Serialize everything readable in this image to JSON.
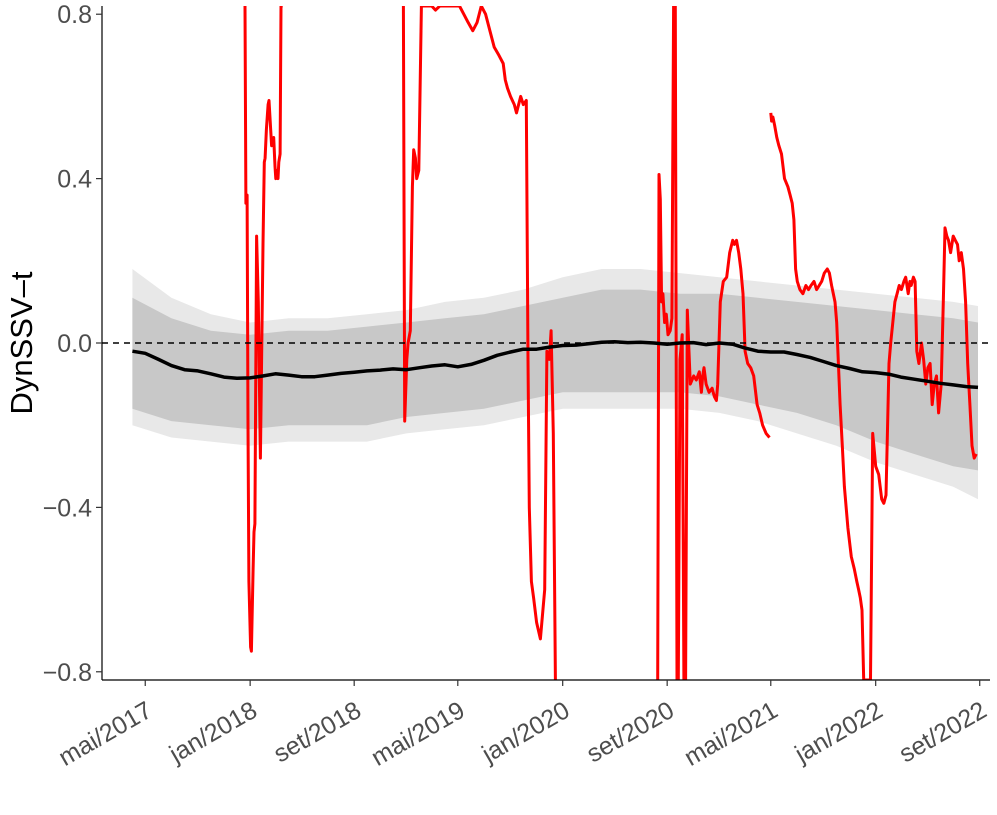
{
  "chart_data": {
    "type": "line",
    "title": "",
    "xlabel": "",
    "ylabel": "DynSSV–t",
    "grid": false,
    "legend": "none",
    "xlim": [
      "2017-01-20",
      "2022-09-25"
    ],
    "ylim": [
      -0.82,
      0.82
    ],
    "x_ticks": [
      "2017-05-01",
      "2018-01-01",
      "2018-09-01",
      "2019-05-01",
      "2020-01-01",
      "2020-09-01",
      "2021-05-01",
      "2022-01-01",
      "2022-09-01"
    ],
    "x_tick_labels": [
      "mai/2017",
      "jan/2018",
      "set/2018",
      "mai/2019",
      "jan/2020",
      "set/2020",
      "mai/2021",
      "jan/2022",
      "set/2022"
    ],
    "y_ticks": [
      -0.8,
      -0.4,
      0.0,
      0.4,
      0.8
    ],
    "y_tick_labels": [
      "−0.8",
      "−0.4",
      "0.0",
      "0.4",
      "0.8"
    ],
    "reference_line": {
      "y": 0.0,
      "style": "dashed",
      "color": "#000000"
    },
    "colors": {
      "observed": "#ff0000",
      "mean": "#000000",
      "band_inner": "#c8c8c8",
      "band_outer": "#e8e8e8"
    },
    "series": [
      {
        "role": "observed",
        "x": [
          "2017-12-20",
          "2017-12-22",
          "2017-12-25",
          "2017-12-27",
          "2017-12-29",
          "2018-01-02",
          "2018-01-04",
          "2018-01-08",
          "2018-01-10",
          "2018-01-12",
          "2018-01-16",
          "2018-01-20",
          "2018-01-25",
          "2018-01-31",
          "2018-02-03",
          "2018-02-05",
          "2018-02-08",
          "2018-02-12",
          "2018-02-14",
          "2018-02-20",
          "2018-02-25",
          "2018-02-28",
          "2018-03-02",
          "2018-03-05",
          "2018-03-07",
          "2018-03-09",
          "2018-03-12",
          "2018-03-14",
          "2018-03-18",
          "2018-03-22",
          "2018-03-25",
          "2018-03-27",
          "2018-03-29",
          "2018-04-02",
          "2018-04-05",
          "2018-04-08",
          "2018-04-12",
          "2018-04-16",
          "2018-04-19"
        ],
        "y": [
          0.82,
          0.34,
          0.36,
          -0.2,
          -0.58,
          -0.74,
          -0.75,
          -0.55,
          -0.46,
          -0.44,
          0.26,
          0.1,
          -0.28,
          0.24,
          0.44,
          0.45,
          0.52,
          0.58,
          0.59,
          0.48,
          0.5,
          0.43,
          0.4,
          0.42,
          0.4,
          0.44,
          0.46,
          0.82,
          0.82,
          null,
          null,
          null,
          null,
          null,
          null,
          null,
          null,
          null,
          null
        ]
      },
      {
        "role": "observed",
        "x": [
          "2018-12-25",
          "2018-12-28",
          "2019-01-02",
          "2019-01-05",
          "2019-01-10",
          "2019-01-15",
          "2019-01-18",
          "2019-01-22",
          "2019-01-25",
          "2019-01-30",
          "2019-02-05",
          "2019-02-12",
          "2019-02-18",
          "2019-03-01",
          "2019-03-10",
          "2019-03-20",
          "2019-04-01",
          "2019-04-12",
          "2019-04-25",
          "2019-05-05",
          "2019-05-15",
          "2019-05-25",
          "2019-06-05",
          "2019-06-15",
          "2019-06-25",
          "2019-07-05",
          "2019-07-15",
          "2019-07-25",
          "2019-08-05",
          "2019-08-15",
          "2019-08-20",
          "2019-08-25",
          "2019-09-01",
          "2019-09-10",
          "2019-09-15",
          "2019-09-20",
          "2019-09-25",
          "2019-10-01",
          "2019-10-08",
          "2019-10-12",
          "2019-10-15",
          "2019-10-20",
          "2019-10-25",
          "2019-11-01",
          "2019-11-10",
          "2019-11-20",
          "2019-11-25",
          "2019-12-01",
          "2019-12-05",
          "2019-12-10",
          "2019-12-15"
        ],
        "y": [
          0.82,
          -0.19,
          -0.04,
          0.0,
          0.03,
          0.38,
          0.47,
          0.45,
          0.4,
          0.42,
          0.82,
          0.82,
          0.82,
          0.82,
          0.81,
          0.82,
          0.82,
          0.82,
          0.82,
          0.82,
          0.8,
          0.78,
          0.76,
          0.78,
          0.82,
          0.8,
          0.76,
          0.72,
          0.7,
          0.68,
          0.64,
          0.62,
          0.6,
          0.58,
          0.56,
          0.58,
          0.6,
          0.58,
          0.59,
          -0.04,
          -0.4,
          -0.58,
          -0.62,
          -0.68,
          -0.72,
          -0.6,
          -0.02,
          -0.04,
          0.03,
          -0.22,
          -0.82
        ]
      },
      {
        "role": "observed",
        "x": [
          "2020-08-10",
          "2020-08-13",
          "2020-08-16",
          "2020-08-19",
          "2020-08-22",
          "2020-08-26",
          "2020-08-30",
          "2020-09-03",
          "2020-09-08",
          "2020-09-12",
          "2020-09-16",
          "2020-09-20",
          "2020-09-24",
          "2020-09-27",
          "2020-10-01",
          "2020-10-06",
          "2020-10-10",
          "2020-10-14",
          "2020-10-18",
          "2020-10-25",
          "2020-11-02",
          "2020-11-08",
          "2020-11-15",
          "2020-11-20",
          "2020-11-23",
          "2020-11-26",
          "2020-12-01",
          "2020-12-08",
          "2020-12-15",
          "2020-12-20",
          "2020-12-25",
          "2020-12-28",
          "2021-01-03",
          "2021-01-10",
          "2021-01-18",
          "2021-01-25",
          "2021-02-01",
          "2021-02-05",
          "2021-02-10",
          "2021-02-15",
          "2021-02-20",
          "2021-02-25",
          "2021-03-02",
          "2021-03-08",
          "2021-03-15",
          "2021-03-22",
          "2021-03-30",
          "2021-04-05",
          "2021-04-12",
          "2021-04-20",
          "2021-04-28"
        ],
        "y": [
          -0.82,
          0.41,
          0.35,
          0.1,
          0.12,
          0.05,
          0.07,
          0.02,
          0.03,
          0.06,
          0.82,
          0.82,
          -0.82,
          -0.82,
          -0.04,
          0.02,
          -0.82,
          -0.82,
          0.08,
          -0.1,
          -0.08,
          -0.09,
          -0.07,
          -0.12,
          -0.08,
          -0.06,
          -0.1,
          -0.12,
          -0.11,
          -0.13,
          -0.14,
          -0.1,
          0.1,
          0.15,
          0.16,
          0.22,
          0.25,
          0.24,
          0.25,
          0.22,
          0.18,
          0.12,
          -0.02,
          -0.05,
          -0.06,
          -0.08,
          -0.15,
          -0.17,
          -0.2,
          -0.22,
          -0.23
        ]
      },
      {
        "role": "observed",
        "x": [
          "2021-05-01",
          "2021-05-03",
          "2021-05-06",
          "2021-05-10",
          "2021-05-15",
          "2021-05-20",
          "2021-05-26",
          "2021-06-02",
          "2021-06-10",
          "2021-06-15",
          "2021-06-20",
          "2021-06-24",
          "2021-06-28",
          "2021-07-02",
          "2021-07-08",
          "2021-07-15",
          "2021-07-22",
          "2021-07-28",
          "2021-08-03",
          "2021-08-10",
          "2021-08-16",
          "2021-08-22",
          "2021-08-28",
          "2021-09-03",
          "2021-09-10",
          "2021-09-15",
          "2021-09-20",
          "2021-09-24",
          "2021-09-28",
          "2021-10-02",
          "2021-10-06",
          "2021-10-10",
          "2021-10-15",
          "2021-10-20",
          "2021-10-28",
          "2021-11-05",
          "2021-11-12",
          "2021-11-18",
          "2021-11-22",
          "2021-11-26",
          "2021-11-30",
          "2021-12-04",
          "2021-12-08",
          "2021-12-10",
          "2021-12-14",
          "2021-12-18"
        ],
        "y": [
          0.56,
          0.54,
          0.55,
          0.53,
          0.5,
          0.48,
          0.46,
          0.4,
          0.38,
          0.36,
          0.34,
          0.3,
          0.18,
          0.15,
          0.13,
          0.12,
          0.14,
          0.13,
          0.14,
          0.15,
          0.13,
          0.14,
          0.15,
          0.17,
          0.18,
          0.17,
          0.14,
          0.12,
          0.1,
          0.05,
          -0.05,
          -0.15,
          -0.25,
          -0.35,
          -0.45,
          -0.52,
          -0.55,
          -0.58,
          -0.6,
          -0.62,
          -0.65,
          -0.82,
          -0.82,
          -0.82,
          -0.82,
          -0.82
        ]
      },
      {
        "role": "observed",
        "x": [
          "2021-12-20",
          "2021-12-25",
          "2022-01-01",
          "2022-01-08",
          "2022-01-15",
          "2022-01-20",
          "2022-01-25",
          "2022-02-01",
          "2022-02-05",
          "2022-02-10",
          "2022-02-15",
          "2022-02-20",
          "2022-02-25",
          "2022-03-02",
          "2022-03-08",
          "2022-03-12",
          "2022-03-18",
          "2022-03-22",
          "2022-03-25",
          "2022-03-30",
          "2022-04-03",
          "2022-04-07",
          "2022-04-12",
          "2022-04-18",
          "2022-04-23",
          "2022-04-28",
          "2022-05-03",
          "2022-05-08",
          "2022-05-13",
          "2022-05-18",
          "2022-05-23",
          "2022-05-28",
          "2022-06-03",
          "2022-06-08",
          "2022-06-12",
          "2022-06-16",
          "2022-06-20",
          "2022-06-25",
          "2022-07-01",
          "2022-07-06",
          "2022-07-11",
          "2022-07-15",
          "2022-07-20",
          "2022-07-25",
          "2022-07-30",
          "2022-08-04",
          "2022-08-09",
          "2022-08-14",
          "2022-08-19",
          "2022-08-24"
        ],
        "y": [
          -0.82,
          -0.22,
          -0.3,
          -0.32,
          -0.38,
          -0.39,
          -0.37,
          -0.05,
          0.0,
          0.05,
          0.1,
          0.12,
          0.14,
          0.13,
          0.15,
          0.16,
          0.12,
          0.15,
          0.14,
          0.16,
          0.15,
          -0.02,
          -0.05,
          0.0,
          -0.04,
          -0.1,
          -0.06,
          -0.05,
          -0.15,
          -0.1,
          -0.08,
          -0.17,
          -0.1,
          0.1,
          0.28,
          0.26,
          0.25,
          0.22,
          0.26,
          0.25,
          0.24,
          0.2,
          0.22,
          0.18,
          0.1,
          -0.05,
          -0.15,
          -0.25,
          -0.28,
          -0.27
        ]
      }
    ],
    "mean": {
      "x": [
        "2017-04-01",
        "2017-05-01",
        "2017-06-01",
        "2017-07-01",
        "2017-08-01",
        "2017-09-01",
        "2017-10-01",
        "2017-11-01",
        "2017-12-01",
        "2018-01-01",
        "2018-02-01",
        "2018-03-01",
        "2018-04-01",
        "2018-05-01",
        "2018-06-01",
        "2018-07-01",
        "2018-08-01",
        "2018-09-01",
        "2018-10-01",
        "2018-11-01",
        "2018-12-01",
        "2019-01-01",
        "2019-02-01",
        "2019-03-01",
        "2019-04-01",
        "2019-05-01",
        "2019-06-01",
        "2019-07-01",
        "2019-08-01",
        "2019-09-01",
        "2019-10-01",
        "2019-11-01",
        "2019-12-01",
        "2020-01-01",
        "2020-02-01",
        "2020-03-01",
        "2020-04-01",
        "2020-05-01",
        "2020-06-01",
        "2020-07-01",
        "2020-08-01",
        "2020-09-01",
        "2020-10-01",
        "2020-11-01",
        "2020-12-01",
        "2021-01-01",
        "2021-02-01",
        "2021-03-01",
        "2021-04-01",
        "2021-05-01",
        "2021-06-01",
        "2021-07-01",
        "2021-08-01",
        "2021-09-01",
        "2021-10-01",
        "2021-11-01",
        "2021-12-01",
        "2022-01-01",
        "2022-02-01",
        "2022-03-01",
        "2022-04-01",
        "2022-05-01",
        "2022-06-01",
        "2022-07-01",
        "2022-08-01",
        "2022-08-28"
      ],
      "y": [
        -0.02,
        -0.025,
        -0.04,
        -0.055,
        -0.065,
        -0.068,
        -0.075,
        -0.083,
        -0.086,
        -0.085,
        -0.08,
        -0.075,
        -0.078,
        -0.082,
        -0.082,
        -0.078,
        -0.074,
        -0.071,
        -0.068,
        -0.066,
        -0.063,
        -0.065,
        -0.06,
        -0.056,
        -0.053,
        -0.058,
        -0.052,
        -0.042,
        -0.03,
        -0.022,
        -0.015,
        -0.015,
        -0.01,
        -0.006,
        -0.005,
        -0.002,
        0.002,
        0.003,
        0.001,
        0.002,
        0.0,
        -0.003,
        0.0,
        0.001,
        -0.004,
        0.0,
        -0.003,
        -0.012,
        -0.02,
        -0.022,
        -0.022,
        -0.028,
        -0.035,
        -0.045,
        -0.055,
        -0.062,
        -0.07,
        -0.072,
        -0.076,
        -0.083,
        -0.088,
        -0.093,
        -0.098,
        -0.102,
        -0.106,
        -0.108
      ]
    },
    "bands": {
      "x": [
        "2017-04-01",
        "2017-07-01",
        "2017-10-01",
        "2018-01-01",
        "2018-04-01",
        "2018-07-01",
        "2018-10-01",
        "2019-01-01",
        "2019-04-01",
        "2019-07-01",
        "2019-10-01",
        "2020-01-01",
        "2020-04-01",
        "2020-07-01",
        "2020-10-01",
        "2021-01-01",
        "2021-04-01",
        "2021-07-01",
        "2021-10-01",
        "2022-01-01",
        "2022-04-01",
        "2022-07-01",
        "2022-08-28"
      ],
      "inner_upper": [
        0.11,
        0.06,
        0.03,
        0.02,
        0.03,
        0.03,
        0.04,
        0.05,
        0.06,
        0.07,
        0.09,
        0.11,
        0.13,
        0.13,
        0.12,
        0.12,
        0.11,
        0.1,
        0.09,
        0.08,
        0.07,
        0.06,
        0.05
      ],
      "inner_lower": [
        -0.16,
        -0.19,
        -0.2,
        -0.21,
        -0.2,
        -0.2,
        -0.2,
        -0.18,
        -0.17,
        -0.16,
        -0.14,
        -0.12,
        -0.12,
        -0.12,
        -0.12,
        -0.13,
        -0.15,
        -0.17,
        -0.2,
        -0.24,
        -0.27,
        -0.3,
        -0.31
      ],
      "outer_upper": [
        0.18,
        0.11,
        0.07,
        0.05,
        0.06,
        0.06,
        0.07,
        0.08,
        0.1,
        0.11,
        0.13,
        0.16,
        0.18,
        0.18,
        0.17,
        0.16,
        0.15,
        0.14,
        0.13,
        0.12,
        0.11,
        0.1,
        0.09
      ],
      "outer_lower": [
        -0.2,
        -0.23,
        -0.24,
        -0.25,
        -0.24,
        -0.24,
        -0.24,
        -0.22,
        -0.21,
        -0.2,
        -0.18,
        -0.16,
        -0.16,
        -0.16,
        -0.16,
        -0.17,
        -0.19,
        -0.22,
        -0.25,
        -0.29,
        -0.32,
        -0.35,
        -0.38
      ]
    }
  }
}
